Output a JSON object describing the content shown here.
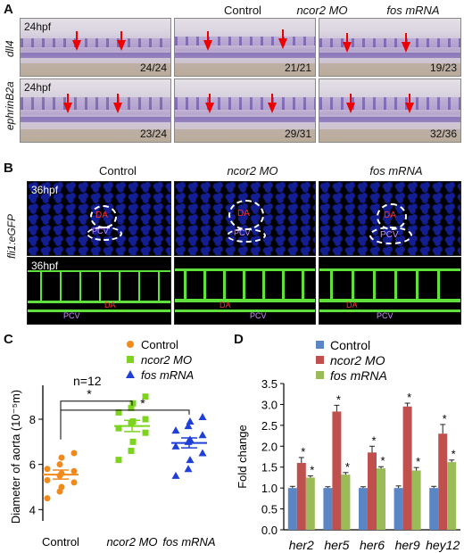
{
  "panelA": {
    "label": "A",
    "columns": [
      "Control",
      "ncor2 MO",
      "fos mRNA"
    ],
    "rows": [
      {
        "gene": "dll4",
        "stage": "24hpf",
        "counts": [
          "24/24",
          "21/21",
          "19/23"
        ]
      },
      {
        "gene": "ephrinB2a",
        "stage": "24hpf",
        "counts": [
          "23/24",
          "29/31",
          "32/36"
        ]
      }
    ]
  },
  "panelB": {
    "label": "B",
    "columns": [
      "Control",
      "ncor2 MO",
      "fos mRNA"
    ],
    "row_label": "fli1:eGFP",
    "stage_top": "36hpf",
    "stage_bottom": "36hpf",
    "da_label": "DA",
    "pcv_label": "PCV"
  },
  "panelC": {
    "label": "C",
    "n_label": "n=12",
    "ylabel": "Diameter of aorta (10⁻⁵m)",
    "star": "*",
    "legend": [
      {
        "name": "Control",
        "color": "#f08a1c",
        "shape": "circle"
      },
      {
        "name": "ncor2 MO",
        "color": "#7ed321",
        "shape": "square"
      },
      {
        "name": "fos mRNA",
        "color": "#1f3fd6",
        "shape": "triangle"
      }
    ]
  },
  "panelD": {
    "label": "D",
    "star": "*"
  },
  "chart_data": [
    {
      "type": "scatter",
      "categories": [
        "Control",
        "ncor2 MO",
        "fos mRNA"
      ],
      "ylim": [
        3.5,
        9.5
      ],
      "yticks": [
        4,
        6,
        8
      ],
      "series": [
        {
          "name": "Control",
          "color": "#f08a1c",
          "shape": "circle",
          "values": [
            4.5,
            4.8,
            5.0,
            5.2,
            5.3,
            5.5,
            5.6,
            5.7,
            5.8,
            6.0,
            6.3,
            6.5
          ],
          "mean": 5.55,
          "sem": 0.2
        },
        {
          "name": "ncor2 MO",
          "color": "#7ed321",
          "shape": "square",
          "values": [
            6.2,
            6.6,
            7.0,
            7.4,
            7.6,
            7.8,
            7.9,
            8.0,
            8.3,
            8.5,
            8.7,
            9.0
          ],
          "mean": 7.7,
          "sem": 0.25
        },
        {
          "name": "fos mRNA",
          "color": "#1f3fd6",
          "shape": "triangle",
          "values": [
            5.5,
            5.8,
            6.2,
            6.5,
            6.8,
            7.0,
            7.1,
            7.3,
            7.5,
            7.7,
            7.9,
            8.1
          ],
          "mean": 6.95,
          "sem": 0.22
        }
      ]
    },
    {
      "type": "bar",
      "categories": [
        "her2",
        "her5",
        "her6",
        "her9",
        "hey12"
      ],
      "ylabel": "Fold change",
      "ylim": [
        0,
        3.5
      ],
      "yticks": [
        0.0,
        0.5,
        1.0,
        1.5,
        2.0,
        2.5,
        3.0,
        3.5
      ],
      "legend_position": "top-left",
      "series": [
        {
          "name": "Control",
          "color": "#5b86c5",
          "values": [
            1.0,
            1.0,
            1.0,
            1.0,
            1.0
          ],
          "errors": [
            0.04,
            0.03,
            0.03,
            0.05,
            0.04
          ]
        },
        {
          "name": "ncor2 MO",
          "color": "#c0504d",
          "values": [
            1.6,
            2.83,
            1.85,
            2.95,
            2.3
          ],
          "errors": [
            0.13,
            0.15,
            0.15,
            0.08,
            0.22
          ]
        },
        {
          "name": "fos mRNA",
          "color": "#9bbb59",
          "values": [
            1.25,
            1.32,
            1.47,
            1.42,
            1.62
          ],
          "errors": [
            0.04,
            0.05,
            0.04,
            0.07,
            0.05
          ]
        }
      ]
    }
  ]
}
